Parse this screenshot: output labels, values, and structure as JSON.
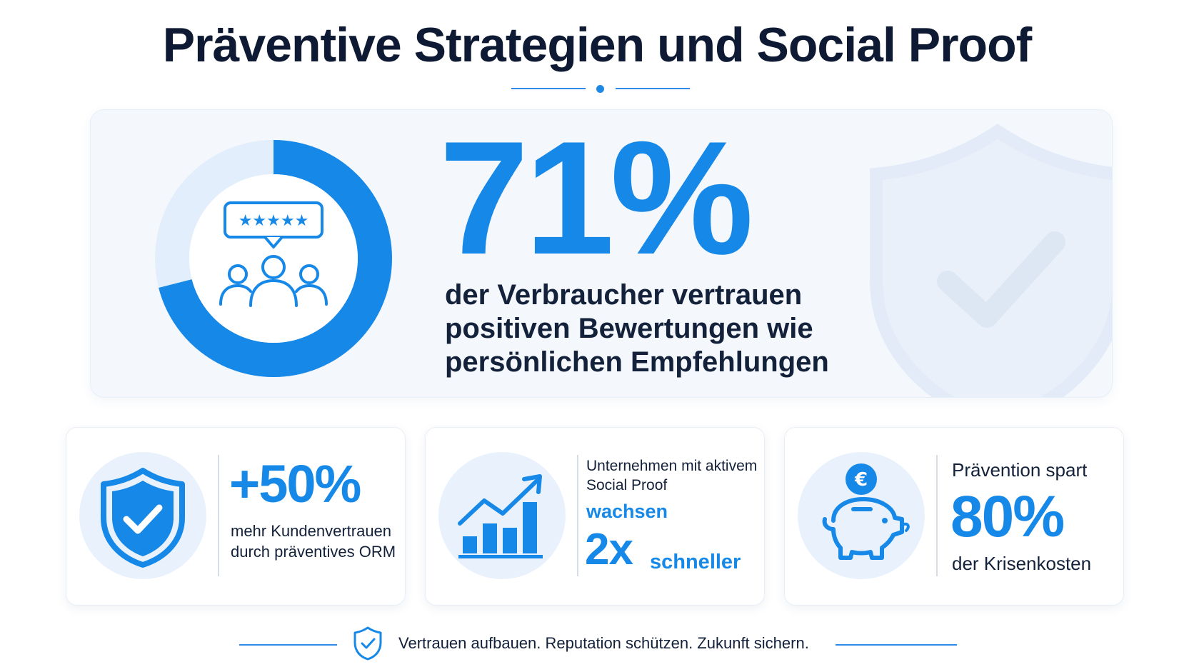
{
  "title": "Präventive Strategien und Social Proof",
  "colors": {
    "accent": "#1688e8",
    "accent_light": "#e2eefb",
    "text": "#13213a"
  },
  "hero": {
    "value": "71%",
    "percent": 71,
    "description": "der Verbraucher vertrauen positiven Bewertungen wie persönlichen Empfehlungen",
    "icons": [
      "review-stars-icon",
      "people-group-icon",
      "shield-check-icon"
    ]
  },
  "cards": [
    {
      "icon": "shield-check-icon",
      "value": "+50%",
      "description": "mehr Kundenvertrauen durch präventives ORM"
    },
    {
      "icon": "growth-chart-icon",
      "lead": "Unternehmen mit aktivem Social Proof",
      "emphasis": "wachsen",
      "value": "2x",
      "suffix": "schneller"
    },
    {
      "icon": "piggy-bank-euro-icon",
      "lead": "Prävention spart",
      "value": "80%",
      "description": "der Krisenkosten"
    }
  ],
  "footer": {
    "icon": "shield-check-icon",
    "text": "Vertrauen aufbauen. Reputation schützen. Zukunft sichern."
  }
}
